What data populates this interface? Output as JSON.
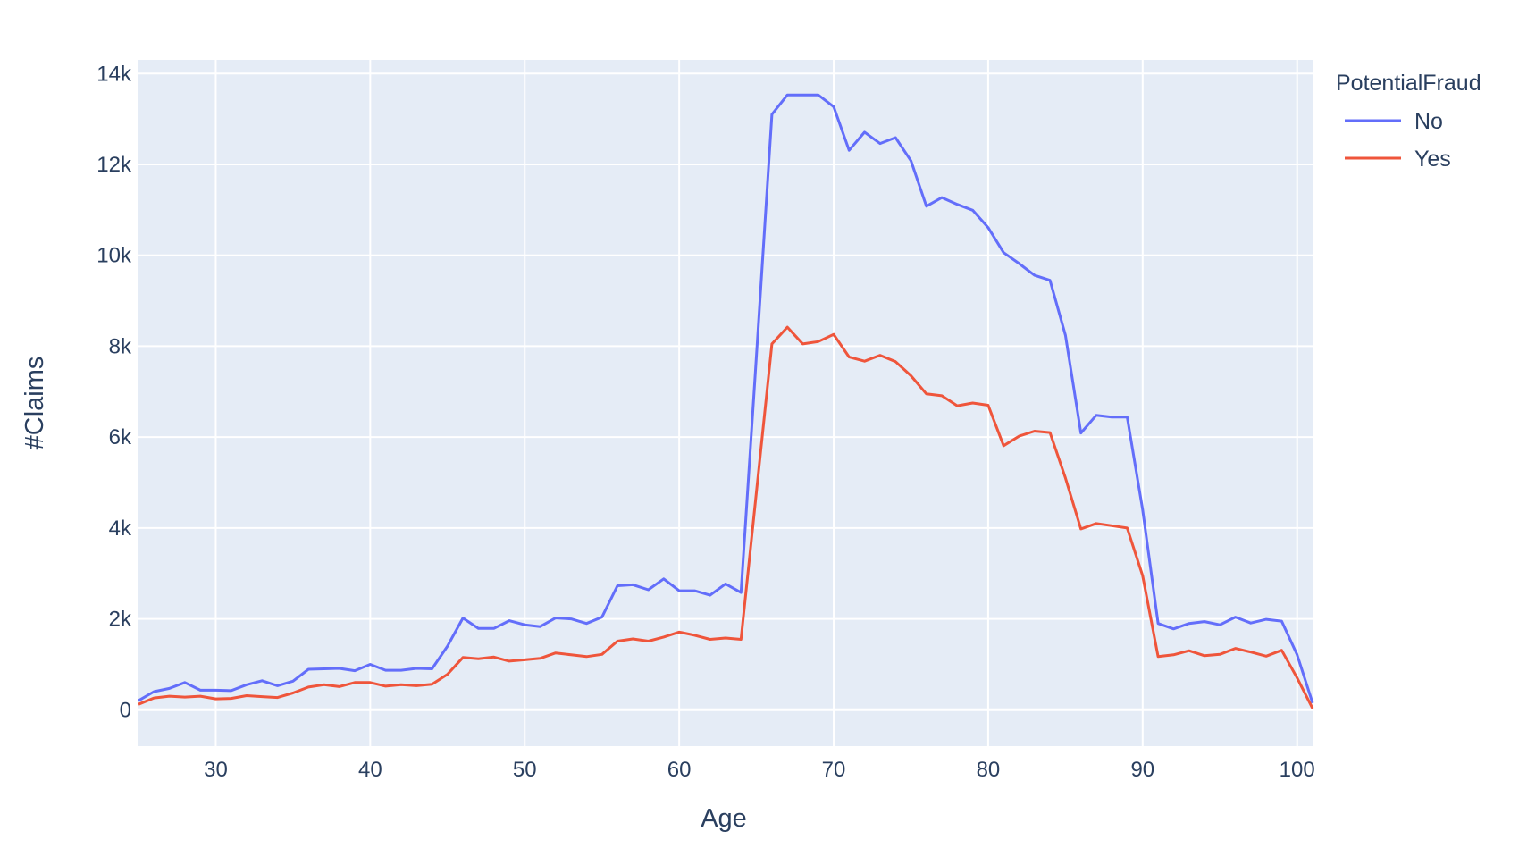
{
  "chart_data": {
    "type": "line",
    "title": "",
    "xlabel": "Age",
    "ylabel": "#Claims",
    "xlim": [
      25,
      101
    ],
    "ylim": [
      -800,
      14300
    ],
    "xticks": [
      30,
      40,
      50,
      60,
      70,
      80,
      90,
      100
    ],
    "xtick_labels": [
      "30",
      "40",
      "50",
      "60",
      "70",
      "80",
      "90",
      "100"
    ],
    "yticks": [
      0,
      2000,
      4000,
      6000,
      8000,
      10000,
      12000,
      14000
    ],
    "ytick_labels": [
      "0",
      "2k",
      "4k",
      "6k",
      "8k",
      "10k",
      "12k",
      "14k"
    ],
    "grid": true,
    "legend_title": "PotentialFraud",
    "legend_position": "top-right",
    "plot_background": "#e5ecf6",
    "x": [
      25,
      26,
      27,
      28,
      29,
      30,
      31,
      32,
      33,
      34,
      35,
      36,
      37,
      38,
      39,
      40,
      41,
      42,
      43,
      44,
      45,
      46,
      47,
      48,
      49,
      50,
      51,
      52,
      53,
      54,
      55,
      56,
      57,
      58,
      59,
      60,
      61,
      62,
      63,
      64,
      65,
      66,
      67,
      68,
      69,
      70,
      71,
      72,
      73,
      74,
      75,
      76,
      77,
      78,
      79,
      80,
      81,
      82,
      83,
      84,
      85,
      86,
      87,
      88,
      89,
      90,
      91,
      92,
      93,
      94,
      95,
      96,
      97,
      98,
      99,
      100,
      101
    ],
    "series": [
      {
        "name": "No",
        "color": "#636efa",
        "values": [
          200,
          400,
          470,
          600,
          430,
          430,
          420,
          550,
          640,
          530,
          630,
          890,
          900,
          910,
          860,
          1000,
          870,
          870,
          910,
          900,
          1400,
          2020,
          1790,
          1790,
          1960,
          1870,
          1830,
          2020,
          2000,
          1900,
          2040,
          2730,
          2750,
          2640,
          2880,
          2620,
          2620,
          2520,
          2770,
          2580,
          7800,
          13100,
          13530,
          13530,
          13530,
          13270,
          12310,
          12710,
          12460,
          12590,
          12080,
          11080,
          11270,
          11120,
          10990,
          10610,
          10060,
          9820,
          9560,
          9450,
          8240,
          6090,
          6480,
          6440,
          6440,
          4400,
          1900,
          1780,
          1900,
          1940,
          1870,
          2040,
          1910,
          1990,
          1950,
          1210,
          150
        ]
      },
      {
        "name": "Yes",
        "color": "#ef553b",
        "values": [
          120,
          260,
          300,
          280,
          300,
          240,
          250,
          310,
          290,
          270,
          370,
          500,
          550,
          510,
          600,
          600,
          520,
          550,
          530,
          560,
          780,
          1150,
          1120,
          1160,
          1070,
          1100,
          1130,
          1250,
          1210,
          1170,
          1220,
          1510,
          1560,
          1510,
          1600,
          1710,
          1640,
          1550,
          1580,
          1550,
          4800,
          8050,
          8420,
          8050,
          8100,
          8260,
          7760,
          7670,
          7800,
          7660,
          7350,
          6950,
          6910,
          6690,
          6750,
          6700,
          5810,
          6020,
          6130,
          6100,
          5100,
          3980,
          4100,
          4050,
          4000,
          2950,
          1170,
          1210,
          1300,
          1190,
          1220,
          1350,
          1270,
          1180,
          1310,
          700,
          30
        ]
      }
    ]
  }
}
